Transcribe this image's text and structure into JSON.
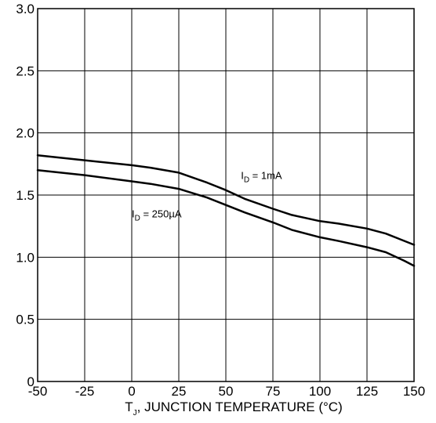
{
  "chart_data": {
    "type": "line",
    "title": "",
    "xlabel_main": "T",
    "xlabel_sub": "J",
    "xlabel_rest": ", JUNCTION TEMPERATURE (°C)",
    "ylabel": "",
    "xlim": [
      -50,
      150
    ],
    "ylim": [
      0,
      3.0
    ],
    "grid": true,
    "x_ticks": [
      -50,
      -25,
      0,
      25,
      50,
      75,
      100,
      125,
      150
    ],
    "x_tick_labels": [
      "-50",
      "-25",
      "0",
      "25",
      "50",
      "75",
      "100",
      "125",
      "150"
    ],
    "y_ticks": [
      0,
      0.5,
      1.0,
      1.5,
      2.0,
      2.5,
      3.0
    ],
    "y_tick_labels": [
      "0",
      "0.5",
      "1.0",
      "1.5",
      "2.0",
      "2.5",
      "3.0"
    ],
    "series": [
      {
        "label_main": "I",
        "label_sub": "D",
        "label_rest": " = 1mA",
        "label_at": [
          58,
          1.63
        ],
        "x": [
          -50,
          -25,
          0,
          10,
          25,
          40,
          50,
          60,
          75,
          85,
          100,
          110,
          125,
          135,
          150
        ],
        "y": [
          1.82,
          1.78,
          1.74,
          1.72,
          1.68,
          1.6,
          1.54,
          1.47,
          1.39,
          1.34,
          1.29,
          1.27,
          1.23,
          1.19,
          1.1
        ]
      },
      {
        "label_main": "I",
        "label_sub": "D",
        "label_rest": " = 250µA",
        "label_at": [
          0,
          1.32
        ],
        "x": [
          -50,
          -25,
          0,
          10,
          25,
          40,
          50,
          60,
          75,
          85,
          100,
          110,
          125,
          135,
          145,
          150
        ],
        "y": [
          1.7,
          1.66,
          1.61,
          1.59,
          1.55,
          1.48,
          1.42,
          1.36,
          1.28,
          1.22,
          1.16,
          1.13,
          1.08,
          1.04,
          0.97,
          0.93
        ]
      }
    ]
  }
}
